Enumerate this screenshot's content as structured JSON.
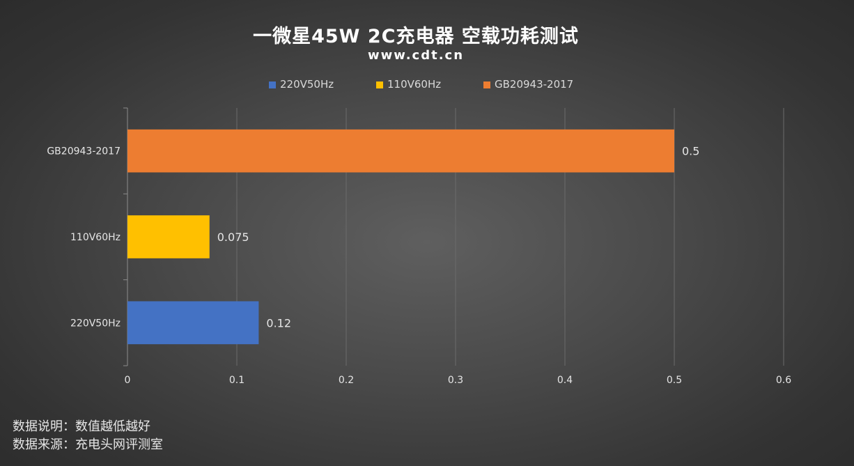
{
  "chart_data": {
    "type": "bar",
    "orientation": "horizontal",
    "title": "一微星45W 2C充电器 空载功耗测试",
    "subtitle": "www.cdt.cn",
    "categories": [
      "220V50Hz",
      "110V60Hz",
      "GB20943-2017"
    ],
    "values": [
      0.12,
      0.075,
      0.5
    ],
    "value_labels": [
      "0.12",
      "0.075",
      "0.5"
    ],
    "colors": [
      "#4472c4",
      "#ffc000",
      "#ed7d31"
    ],
    "legend": [
      {
        "label": "220V50Hz",
        "color": "#4472c4"
      },
      {
        "label": "110V60Hz",
        "color": "#ffc000"
      },
      {
        "label": "GB20943-2017",
        "color": "#ed7d31"
      }
    ],
    "legend_position": "top",
    "xlim": [
      0,
      0.6
    ],
    "xticks": [
      0,
      0.1,
      0.2,
      0.3,
      0.4,
      0.5,
      0.6
    ],
    "xtick_labels": [
      "0",
      "0.1",
      "0.2",
      "0.3",
      "0.4",
      "0.5",
      "0.6"
    ],
    "grid": "vertical",
    "xlabel": "",
    "ylabel": ""
  },
  "footer": {
    "line1": "数据说明：数值越低越好",
    "line2": "数据来源：充电头网评测室"
  }
}
